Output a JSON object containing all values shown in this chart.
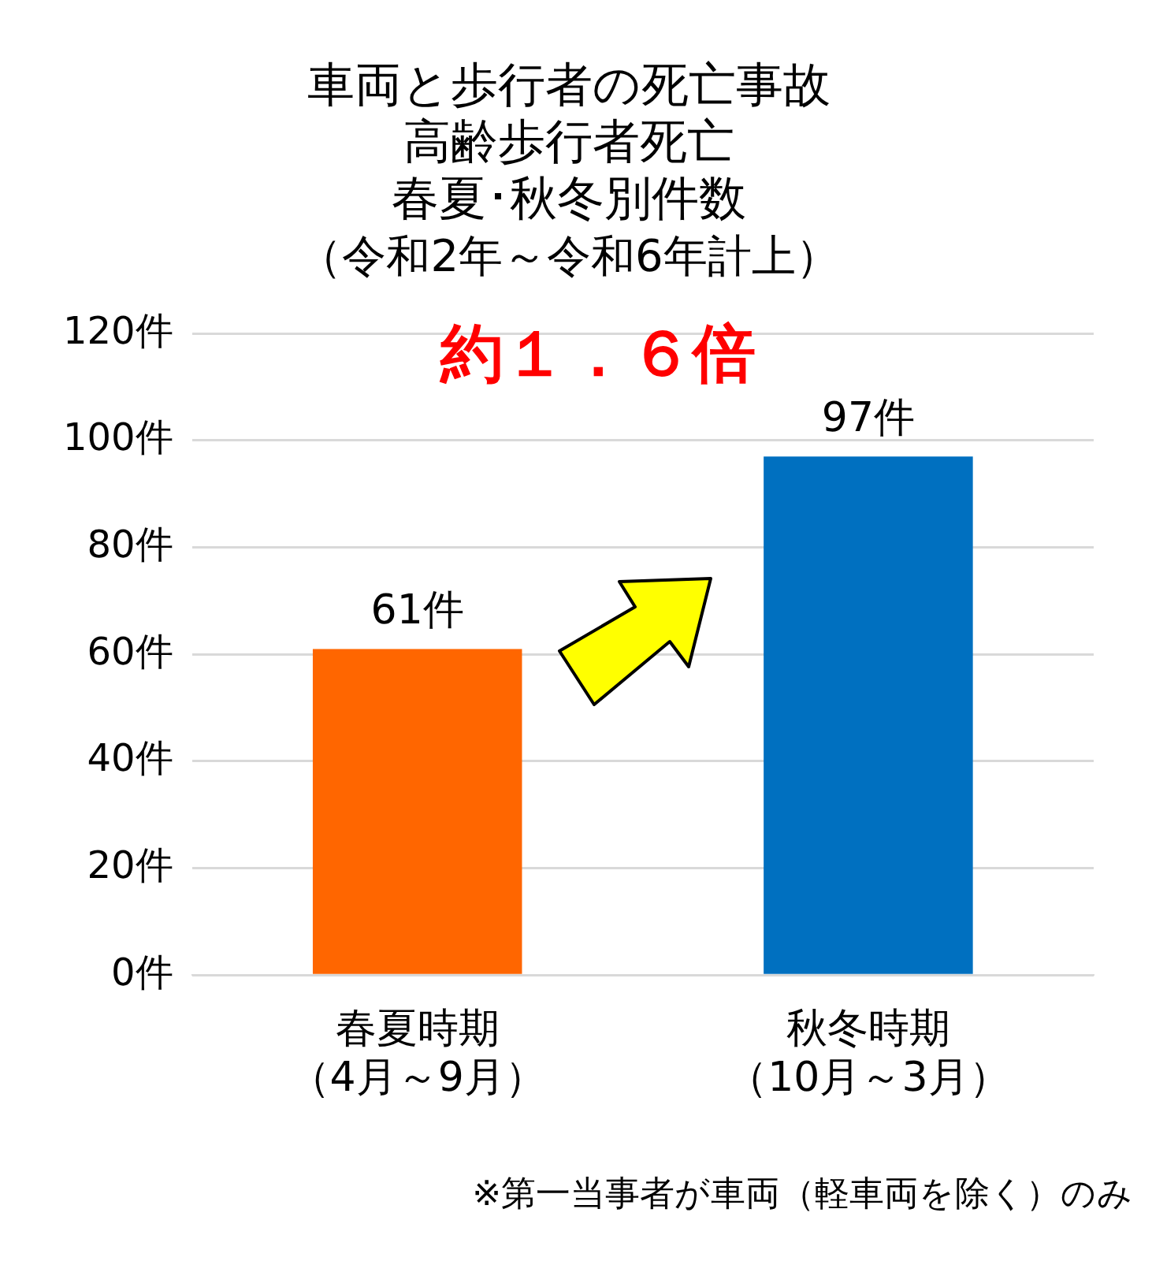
{
  "chart_data": {
    "type": "bar",
    "title": [
      "車両と歩行者の死亡事故",
      "高齢歩行者死亡",
      "春夏･秋冬別件数"
    ],
    "subtitle": "（令和2年～令和6年計上）",
    "categories": [
      "春夏時期（4月～9月）",
      "秋冬時期（10月～3月）"
    ],
    "values": [
      61,
      97
    ],
    "colors": [
      "#ff6600",
      "#0070c0"
    ],
    "value_labels": [
      "61件",
      "97件"
    ],
    "ylim": [
      0,
      120
    ],
    "yticks": [
      {
        "value": 0,
        "label": "0件"
      },
      {
        "value": 20,
        "label": "20件"
      },
      {
        "value": 40,
        "label": "40件"
      },
      {
        "value": 60,
        "label": "60件"
      },
      {
        "value": 80,
        "label": "80件"
      },
      {
        "value": 100,
        "label": "100件"
      },
      {
        "value": 120,
        "label": "120件"
      }
    ],
    "grid": "y",
    "annotations": [
      "約１．６倍",
      "※第一当事者が車両（軽車両を除く）のみ"
    ]
  }
}
